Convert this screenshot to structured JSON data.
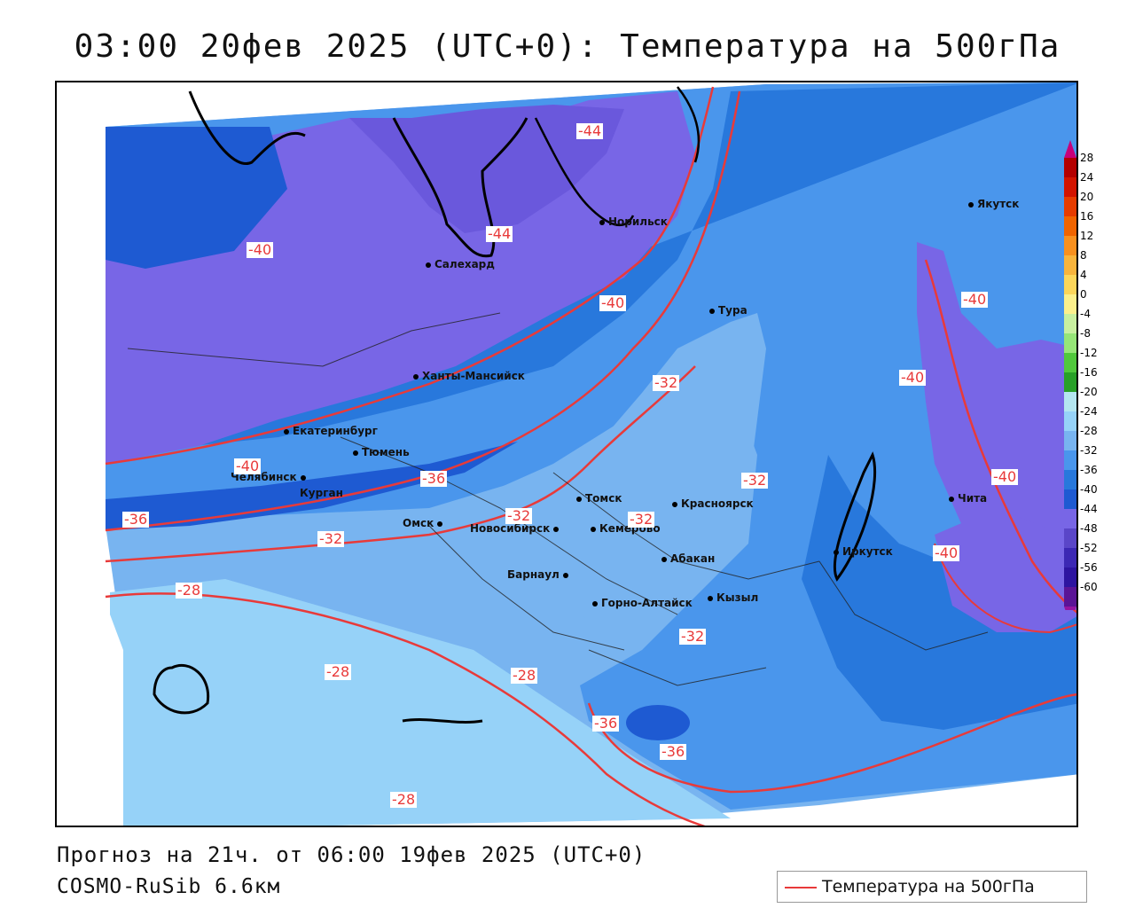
{
  "title": "03:00 20фев 2025 (UTC+0): Температура на 500гПа",
  "footer": {
    "forecast": "Прогноз на 21ч. от 06:00 19фев 2025 (UTC+0)",
    "model": "COSMO-RuSib 6.6км"
  },
  "legend": {
    "label": "Температура на 500гПа",
    "line_color": "#e83a3a"
  },
  "colorbar": {
    "ticks": [
      "28",
      "24",
      "20",
      "16",
      "12",
      "8",
      "4",
      "0",
      "-4",
      "-8",
      "-12",
      "-16",
      "-20",
      "-24",
      "-28",
      "-32",
      "-36",
      "-40",
      "-44",
      "-48",
      "-52",
      "-56",
      "-60"
    ],
    "colors": [
      "#c8007a",
      "#b40000",
      "#d21400",
      "#e63c00",
      "#f06400",
      "#f8901e",
      "#f8b43c",
      "#fcd65a",
      "#fcf08c",
      "#c8f0a0",
      "#96e678",
      "#50c83c",
      "#28a028",
      "#b4e6f0",
      "#96d2f8",
      "#78b4f0",
      "#4a96ec",
      "#2878dc",
      "#1e5ad2",
      "#7866e6",
      "#5a46c8",
      "#3c28b4",
      "#2d14a0",
      "#5a1496",
      "#9614a0"
    ]
  },
  "cities": [
    {
      "name": "Норильск"
    },
    {
      "name": "Салехард"
    },
    {
      "name": "Тура"
    },
    {
      "name": "Якутск"
    },
    {
      "name": "Ханты-Мансийск"
    },
    {
      "name": "Екатеринбург"
    },
    {
      "name": "Тюмень"
    },
    {
      "name": "Челябинск"
    },
    {
      "name": "Курган"
    },
    {
      "name": "Омск"
    },
    {
      "name": "Томск"
    },
    {
      "name": "Красноярск"
    },
    {
      "name": "Новосибирск"
    },
    {
      "name": "Кемерово"
    },
    {
      "name": "Абакан"
    },
    {
      "name": "Барнаул"
    },
    {
      "name": "Горно-Алтайск"
    },
    {
      "name": "Кызыл"
    },
    {
      "name": "Иркутск"
    },
    {
      "name": "Чита"
    }
  ],
  "contour_labels": [
    "-44",
    "-44",
    "-40",
    "-40",
    "-40",
    "-40",
    "-40",
    "-40",
    "-40",
    "-32",
    "-36",
    "-32",
    "-32",
    "-32",
    "-36",
    "-32",
    "-28",
    "-28",
    "-28",
    "-32",
    "-36",
    "-36",
    "-28"
  ]
}
